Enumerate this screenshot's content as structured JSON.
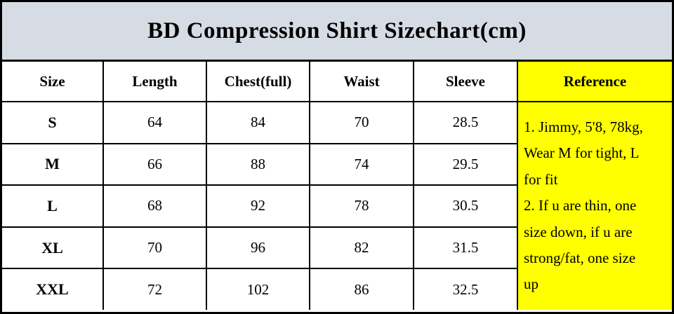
{
  "title": "BD Compression Shirt Sizechart(cm)",
  "table": {
    "columns": [
      "Size",
      "Length",
      "Chest(full)",
      "Waist",
      "Sleeve",
      "Reference"
    ],
    "rows": [
      {
        "size": "S",
        "length": "64",
        "chest": "84",
        "waist": "70",
        "sleeve": "28.5"
      },
      {
        "size": "M",
        "length": "66",
        "chest": "88",
        "waist": "74",
        "sleeve": "29.5"
      },
      {
        "size": "L",
        "length": "68",
        "chest": "92",
        "waist": "78",
        "sleeve": "30.5"
      },
      {
        "size": "XL",
        "length": "70",
        "chest": "96",
        "waist": "82",
        "sleeve": "31.5"
      },
      {
        "size": "XXL",
        "length": "72",
        "chest": "102",
        "waist": "86",
        "sleeve": "32.5"
      }
    ]
  },
  "reference": {
    "lines": [
      "1. Jimmy, 5'8, 78kg,",
      "Wear M for tight, L",
      "for fit",
      "2. If u are thin, one",
      "size down, if u are",
      "strong/fat, one size",
      "up"
    ]
  },
  "colors": {
    "title_bg": "#d6dce4",
    "reference_bg": "#ffff00",
    "cell_bg": "#ffffff",
    "border": "#000000",
    "text": "#000000"
  }
}
